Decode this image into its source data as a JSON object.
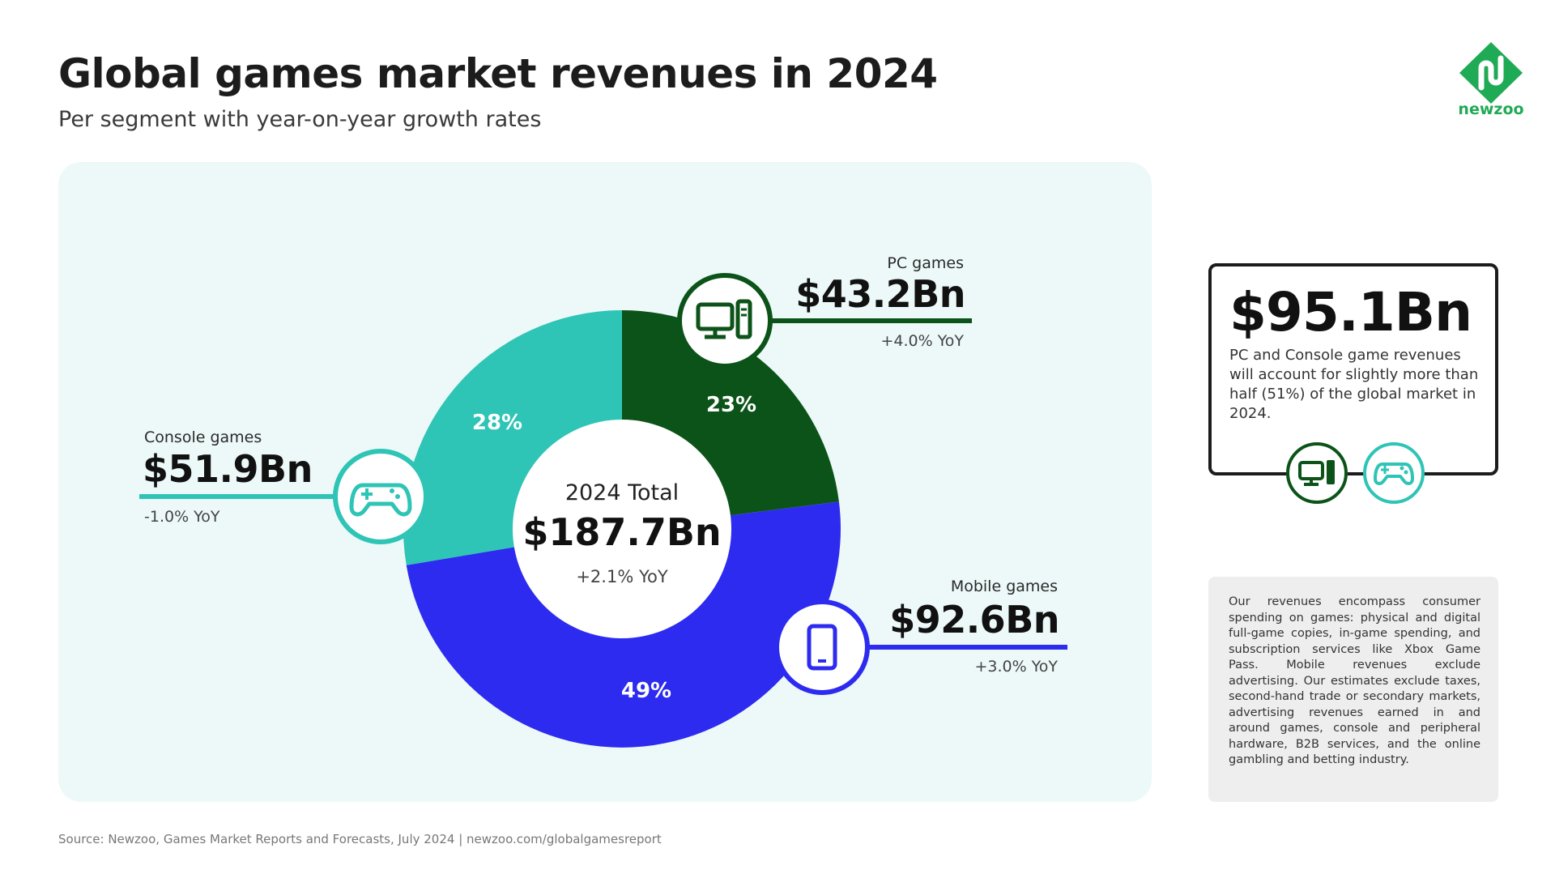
{
  "header": {
    "title": "Global games market revenues in 2024",
    "subtitle": "Per segment with year-on-year growth rates"
  },
  "logo": {
    "text": "newzoo",
    "icon": "newzoo-logo-icon",
    "color": "#1faa55"
  },
  "chart_data": {
    "type": "pie",
    "variant": "donut",
    "center": {
      "label": "2024 Total",
      "value": "$187.7Bn",
      "yoy": "+2.1% YoY"
    },
    "segments": [
      {
        "name": "PC games",
        "value": 43.2,
        "value_label": "$43.2Bn",
        "share": 23,
        "share_label": "23%",
        "yoy": "+4.0% YoY",
        "color": "#0c5319",
        "icon": "desktop-computer-icon"
      },
      {
        "name": "Mobile games",
        "value": 92.6,
        "value_label": "$92.6Bn",
        "share": 49,
        "share_label": "49%",
        "yoy": "+3.0% YoY",
        "color": "#2d2bef",
        "icon": "smartphone-icon"
      },
      {
        "name": "Console games",
        "value": 51.9,
        "value_label": "$51.9Bn",
        "share": 28,
        "share_label": "28%",
        "yoy": "-1.0% YoY",
        "color": "#2ec4b6",
        "icon": "gamepad-icon"
      }
    ],
    "start_angle_deg": 0,
    "direction": "clockwise",
    "legend": "none"
  },
  "callout": {
    "value": "$95.1Bn",
    "text": "PC and Console game revenues will account for slightly more than half (51%) of the global market in 2024.",
    "icons": [
      "desktop-computer-icon",
      "gamepad-icon"
    ]
  },
  "note": {
    "text": "Our revenues encompass consumer spending on games: physical and digital full-game copies, in-game spending, and subscription services like Xbox Game Pass. Mobile revenues exclude advertising. Our estimates exclude taxes, second-hand trade or secondary markets, advertising revenues earned in and around games, console and peripheral hardware, B2B services, and the online gambling and betting industry."
  },
  "footer": {
    "source": "Source: Newzoo, Games Market Reports and Forecasts, July 2024 | newzoo.com/globalgamesreport"
  }
}
